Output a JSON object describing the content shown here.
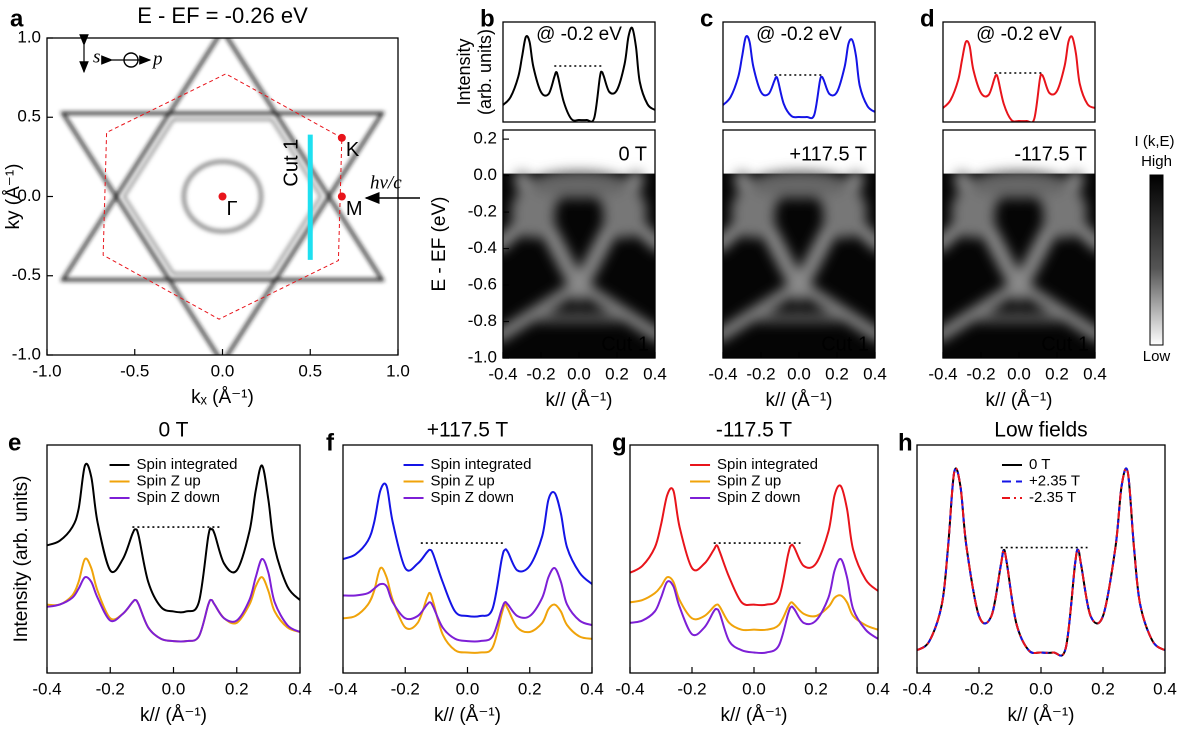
{
  "chart_data": [
    {
      "type": "image",
      "panel": "a",
      "title": "E - EF = -0.26 eV",
      "xlabel": "kₓ (Å⁻¹)",
      "ylabel": "ky (Å⁻¹)",
      "xlim": [
        -1.0,
        1.0
      ],
      "ylim": [
        -1.0,
        1.0
      ],
      "xticks": [
        {
          "value": -1,
          "label": "-1.0"
        },
        -0.5,
        {
          "value": 0,
          "label": "0.0"
        },
        0.5,
        {
          "value": 1,
          "label": "1.0"
        }
      ],
      "yticks": [
        {
          "value": -1,
          "label": "-1.0"
        },
        -0.5,
        {
          "value": 0,
          "label": "0.0"
        },
        0.5,
        {
          "value": 1,
          "label": "1.0"
        }
      ],
      "point_color": "#e8141b",
      "points": [
        {
          "label": "Γ",
          "x": 0,
          "y": 0
        },
        {
          "label": "K",
          "x": 0.68,
          "y": 0.37
        },
        {
          "label": "M",
          "x": 0.68,
          "y": 0
        }
      ],
      "cut": {
        "label": "Cut 1",
        "x": 0.5,
        "y": [
          -0.4,
          0.39
        ],
        "color": "#1ee0f0"
      },
      "annotations": [
        "s",
        "p",
        "hν/c"
      ]
    },
    {
      "type": "line",
      "panel": "b",
      "title": "@ -0.2 eV",
      "ylabel": [
        "Intensity",
        "(arb. units)"
      ],
      "xlim": [
        -0.4,
        0.4
      ],
      "ylim": [
        0,
        100
      ],
      "x": [
        -0.4,
        -0.36,
        -0.32,
        -0.3,
        -0.28,
        -0.26,
        -0.24,
        -0.2,
        -0.16,
        -0.13,
        -0.12,
        -0.11,
        -0.08,
        -0.04,
        0,
        0.04,
        0.08,
        0.11,
        0.12,
        0.13,
        0.16,
        0.2,
        0.24,
        0.26,
        0.28,
        0.3,
        0.32,
        0.36,
        0.4
      ],
      "series": [
        {
          "color": "#000000",
          "values": [
            17,
            25,
            45,
            65,
            85,
            80,
            55,
            30,
            28,
            45,
            50,
            45,
            20,
            3,
            2,
            2,
            4,
            45,
            50,
            46,
            30,
            32,
            58,
            85,
            94,
            75,
            40,
            18,
            12
          ]
        }
      ],
      "reference": {
        "x": [
          -0.13,
          0.13
        ],
        "y": 56
      }
    },
    {
      "type": "heatmap",
      "label": "0 T",
      "label_color": "#000000",
      "annotation": "Cut 1",
      "annotation_color": "#1ee0f0",
      "xlabel": "k// (Å⁻¹)",
      "ylabel": "E - EF (eV)",
      "xlim": [
        -0.4,
        0.4
      ],
      "ylim": [
        -1.0,
        0.25
      ],
      "xticks": [
        -0.4,
        -0.2,
        {
          "value": 0,
          "label": "0.0"
        },
        0.2,
        0.4
      ],
      "yticks": [
        0.2,
        {
          "value": 0,
          "label": "0.0"
        },
        -0.2,
        -0.4,
        -0.6,
        -0.8,
        {
          "value": -1,
          "label": "-1.0"
        }
      ]
    },
    {
      "type": "line",
      "panel": "c",
      "title": "@ -0.2 eV",
      "xlim": [
        -0.4,
        0.4
      ],
      "ylim": [
        0,
        100
      ],
      "x": [
        -0.4,
        -0.36,
        -0.32,
        -0.3,
        -0.28,
        -0.26,
        -0.24,
        -0.2,
        -0.16,
        -0.13,
        -0.12,
        -0.11,
        -0.08,
        -0.04,
        0,
        0.04,
        0.08,
        0.11,
        0.12,
        0.13,
        0.16,
        0.2,
        0.24,
        0.26,
        0.28,
        0.3,
        0.32,
        0.36,
        0.4
      ],
      "series": [
        {
          "color": "#1414e6",
          "values": [
            17,
            25,
            45,
            65,
            85,
            80,
            55,
            30,
            28,
            41,
            45,
            41,
            18,
            6,
            5,
            5,
            7,
            41,
            45,
            42,
            28,
            30,
            55,
            78,
            82,
            66,
            36,
            16,
            10
          ]
        }
      ],
      "reference": {
        "x": [
          -0.13,
          0.13
        ],
        "y": 47
      }
    },
    {
      "type": "heatmap",
      "label": "+117.5 T",
      "label_color": "#1414e6",
      "annotation": "Cut 1",
      "annotation_color": "#1ee0f0",
      "xlabel": "k// (Å⁻¹)",
      "xlim": [
        -0.4,
        0.4
      ],
      "ylim": [
        -1.0,
        0.25
      ],
      "xticks": [
        -0.4,
        -0.2,
        {
          "value": 0,
          "label": "0.0"
        },
        0.2,
        0.4
      ]
    },
    {
      "type": "line",
      "panel": "d",
      "title": "@ -0.2 eV",
      "xlim": [
        -0.4,
        0.4
      ],
      "ylim": [
        0,
        100
      ],
      "x": [
        -0.4,
        -0.36,
        -0.32,
        -0.3,
        -0.28,
        -0.26,
        -0.24,
        -0.2,
        -0.16,
        -0.13,
        -0.12,
        -0.11,
        -0.08,
        -0.04,
        0,
        0.04,
        0.08,
        0.11,
        0.12,
        0.13,
        0.16,
        0.2,
        0.24,
        0.26,
        0.28,
        0.3,
        0.32,
        0.36,
        0.4
      ],
      "series": [
        {
          "color": "#e8141b",
          "values": [
            14,
            22,
            42,
            62,
            80,
            76,
            52,
            29,
            27,
            43,
            47,
            43,
            18,
            2,
            1,
            1,
            3,
            43,
            47,
            44,
            29,
            31,
            56,
            80,
            85,
            68,
            38,
            18,
            14
          ]
        }
      ],
      "reference": {
        "x": [
          -0.13,
          0.13
        ],
        "y": 49
      }
    },
    {
      "type": "heatmap",
      "label": "-117.5 T",
      "label_color": "#e8141b",
      "annotation": "Cut 1",
      "annotation_color": "#1ee0f0",
      "xlabel": "k// (Å⁻¹)",
      "xlim": [
        -0.4,
        0.4
      ],
      "ylim": [
        -1.0,
        0.25
      ],
      "xticks": [
        -0.4,
        -0.2,
        {
          "value": 0,
          "label": "0.0"
        },
        0.2,
        0.4
      ]
    },
    {
      "type": "colorbar",
      "title": "I (k,E)",
      "high": "High",
      "low": "Low"
    },
    {
      "type": "line",
      "panel": "e",
      "title": "0 T",
      "title_color": "#000000",
      "legend": "top",
      "xlabel": "k// (Å⁻¹)",
      "ylabel": "Intensity (arb. units)",
      "xlim": [
        -0.4,
        0.4
      ],
      "ylim": [
        0,
        100
      ],
      "xticks": [
        -0.4,
        -0.2,
        {
          "value": 0,
          "label": "0.0"
        },
        0.2,
        0.4
      ],
      "x": [
        -0.4,
        -0.36,
        -0.32,
        -0.3,
        -0.28,
        -0.26,
        -0.24,
        -0.2,
        -0.16,
        -0.13,
        -0.12,
        -0.11,
        -0.08,
        -0.04,
        0,
        0.04,
        0.08,
        0.11,
        0.12,
        0.13,
        0.16,
        0.2,
        0.24,
        0.26,
        0.28,
        0.3,
        0.32,
        0.36,
        0.4
      ],
      "series": [
        {
          "name": "Spin integrated",
          "color": "#000000",
          "values": [
            56,
            58,
            64,
            72,
            91,
            86,
            66,
            45,
            50,
            61,
            63,
            60,
            40,
            29,
            27,
            27,
            31,
            60,
            63,
            61,
            48,
            45,
            62,
            80,
            91,
            76,
            55,
            38,
            32
          ]
        },
        {
          "name": "Spin Z up",
          "color": "#f0a30a",
          "values": [
            30,
            30,
            34,
            40,
            50,
            46,
            36,
            24,
            26,
            31,
            32,
            30,
            20,
            15,
            14,
            14,
            16,
            30,
            32,
            30,
            24,
            22,
            30,
            38,
            42,
            36,
            27,
            20,
            18
          ]
        },
        {
          "name": "Spin Z down",
          "color": "#7d1fd6",
          "values": [
            29,
            30,
            33,
            37,
            42,
            40,
            33,
            23,
            26,
            31,
            32,
            30,
            20,
            15,
            14,
            14,
            16,
            30,
            32,
            30,
            24,
            23,
            32,
            42,
            50,
            44,
            31,
            21,
            18
          ]
        }
      ],
      "reference": {
        "x": [
          -0.13,
          0.15
        ],
        "y": 64
      }
    },
    {
      "type": "line",
      "panel": "f",
      "title": "+117.5 T",
      "title_color": "#1414e6",
      "legend": "top",
      "xlabel": "k// (Å⁻¹)",
      "xlim": [
        -0.4,
        0.4
      ],
      "ylim": [
        0,
        100
      ],
      "xticks": [
        -0.4,
        -0.2,
        {
          "value": 0,
          "label": "0.0"
        },
        0.2,
        0.4
      ],
      "x": [
        -0.4,
        -0.36,
        -0.32,
        -0.3,
        -0.28,
        -0.26,
        -0.24,
        -0.2,
        -0.16,
        -0.13,
        -0.12,
        -0.11,
        -0.08,
        -0.04,
        0,
        0.04,
        0.08,
        0.11,
        0.12,
        0.13,
        0.16,
        0.2,
        0.24,
        0.26,
        0.28,
        0.3,
        0.32,
        0.36,
        0.4
      ],
      "series": [
        {
          "name": "Spin integrated",
          "color": "#1414e6",
          "values": [
            50,
            52,
            58,
            66,
            80,
            82,
            66,
            46,
            48,
            53,
            54,
            52,
            40,
            27,
            25,
            25,
            28,
            50,
            54,
            53,
            45,
            47,
            60,
            76,
            79,
            70,
            55,
            44,
            39
          ]
        },
        {
          "name": "Spin Z up",
          "color": "#f0a30a",
          "values": [
            24,
            25,
            30,
            36,
            46,
            42,
            32,
            20,
            22,
            33,
            35,
            31,
            17,
            10,
            9,
            9,
            11,
            26,
            30,
            28,
            20,
            18,
            22,
            28,
            30,
            27,
            21,
            16,
            15
          ]
        },
        {
          "name": "Spin Z down",
          "color": "#7d1fd6",
          "values": [
            34,
            34,
            35,
            37,
            39,
            38,
            31,
            24,
            25,
            30,
            31,
            29,
            20,
            15,
            14,
            14,
            16,
            28,
            31,
            30,
            25,
            25,
            33,
            42,
            46,
            40,
            30,
            23,
            21
          ]
        }
      ],
      "reference": {
        "x": [
          -0.15,
          0.12
        ],
        "y": 57
      }
    },
    {
      "type": "line",
      "panel": "g",
      "title": "-117.5 T",
      "title_color": "#e8141b",
      "legend": "top",
      "xlabel": "k// (Å⁻¹)",
      "xlim": [
        -0.4,
        0.4
      ],
      "ylim": [
        0,
        100
      ],
      "xticks": [
        -0.4,
        -0.2,
        {
          "value": 0,
          "label": "0.0"
        },
        0.2,
        0.4
      ],
      "x": [
        -0.4,
        -0.36,
        -0.32,
        -0.3,
        -0.28,
        -0.26,
        -0.24,
        -0.2,
        -0.16,
        -0.13,
        -0.12,
        -0.11,
        -0.08,
        -0.04,
        0,
        0.04,
        0.08,
        0.11,
        0.12,
        0.13,
        0.16,
        0.2,
        0.24,
        0.26,
        0.28,
        0.3,
        0.32,
        0.36,
        0.4
      ],
      "series": [
        {
          "name": "Spin integrated",
          "color": "#e8141b",
          "values": [
            44,
            47,
            55,
            65,
            78,
            80,
            64,
            46,
            48,
            54,
            56,
            53,
            42,
            31,
            30,
            30,
            33,
            52,
            56,
            55,
            47,
            48,
            62,
            78,
            82,
            72,
            54,
            41,
            36
          ]
        },
        {
          "name": "Spin Z up",
          "color": "#f0a30a",
          "values": [
            31,
            32,
            35,
            38,
            42,
            40,
            32,
            24,
            25,
            29,
            30,
            29,
            22,
            19,
            19,
            19,
            21,
            29,
            31,
            30,
            26,
            25,
            29,
            33,
            34,
            31,
            25,
            21,
            19
          ]
        },
        {
          "name": "Spin Z down",
          "color": "#7d1fd6",
          "values": [
            22,
            23,
            27,
            33,
            40,
            38,
            29,
            17,
            20,
            27,
            28,
            26,
            14,
            10,
            9,
            9,
            12,
            26,
            29,
            28,
            22,
            23,
            33,
            45,
            50,
            42,
            28,
            19,
            15
          ]
        }
      ],
      "reference": {
        "x": [
          -0.13,
          0.15
        ],
        "y": 57
      }
    },
    {
      "type": "line",
      "panel": "h",
      "title": "Low fields",
      "title_color": "#000000",
      "legend": "top",
      "xlabel": "k// (Å⁻¹)",
      "xlim": [
        -0.4,
        0.4
      ],
      "ylim": [
        0,
        100
      ],
      "xticks": [
        -0.4,
        -0.2,
        {
          "value": 0,
          "label": "0.0"
        },
        0.2,
        0.4
      ],
      "x": [
        -0.4,
        -0.36,
        -0.32,
        -0.3,
        -0.28,
        -0.26,
        -0.24,
        -0.2,
        -0.16,
        -0.13,
        -0.12,
        -0.11,
        -0.08,
        -0.04,
        0,
        0.04,
        0.08,
        0.11,
        0.12,
        0.13,
        0.16,
        0.2,
        0.24,
        0.26,
        0.28,
        0.3,
        0.32,
        0.36,
        0.4
      ],
      "series": [
        {
          "name": "0 T",
          "color": "#000000",
          "style": "solid",
          "values": [
            10,
            14,
            30,
            55,
            88,
            82,
            55,
            25,
            25,
            47,
            54,
            48,
            22,
            10,
            9,
            9,
            11,
            48,
            54,
            47,
            25,
            25,
            55,
            82,
            88,
            55,
            30,
            14,
            10
          ]
        },
        {
          "name": "+2.35 T",
          "color": "#1414e6",
          "style": "dashed",
          "values": [
            10,
            14,
            30,
            55,
            88,
            82,
            55,
            25,
            25,
            47,
            54,
            48,
            22,
            10,
            9,
            9,
            11,
            48,
            54,
            47,
            25,
            25,
            55,
            82,
            88,
            55,
            30,
            14,
            10
          ]
        },
        {
          "name": "-2.35 T",
          "color": "#e8141b",
          "style": "dashdot",
          "values": [
            10,
            14,
            30,
            55,
            88,
            82,
            55,
            25,
            25,
            47,
            54,
            48,
            22,
            10,
            9,
            9,
            11,
            48,
            54,
            47,
            25,
            25,
            55,
            82,
            88,
            55,
            30,
            14,
            10
          ]
        }
      ],
      "reference": {
        "x": [
          -0.13,
          0.15
        ],
        "y": 55
      }
    }
  ]
}
